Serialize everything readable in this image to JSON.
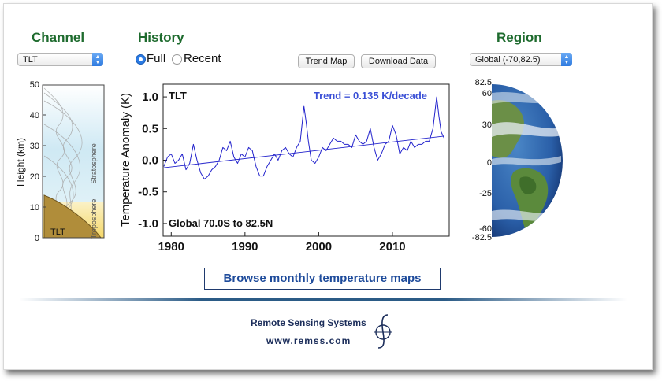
{
  "headings": {
    "channel": "Channel",
    "history": "History",
    "region": "Region"
  },
  "channel_select": {
    "value": "TLT"
  },
  "history": {
    "options": [
      {
        "label": "Full",
        "selected": true
      },
      {
        "label": "Recent",
        "selected": false
      }
    ]
  },
  "buttons": {
    "trend_map": "Trend Map",
    "download_data": "Download Data"
  },
  "region_select": {
    "value": "Global (-70,82.5)"
  },
  "atmosphere": {
    "ylabel": "Height  (km)",
    "ticks": [
      "0",
      "10",
      "20",
      "30",
      "40",
      "50"
    ],
    "layers": {
      "stratosphere": "Stratosphere",
      "troposphere": "Troposphere"
    },
    "channel_label": "TLT",
    "colors": {
      "stratosphere": "#d4ecf5",
      "troposphere": "#f7e6a0",
      "weighting": "#b08d3a"
    }
  },
  "chart_data": {
    "type": "line",
    "title": "",
    "corner_label": "TLT",
    "trend_text": "Trend =  0.135 K/decade",
    "region_text": "Global  70.0S to  82.5N",
    "xlabel": "",
    "ylabel": "Temperature Anomaly (K)",
    "xlim": [
      1978.9,
      2017.7
    ],
    "ylim": [
      -1.2,
      1.2
    ],
    "x_ticks": [
      "1980",
      "1990",
      "2000",
      "2010"
    ],
    "y_ticks": [
      "1.0",
      "0.5",
      "0.0",
      "-0.5",
      "-1.0"
    ],
    "series": [
      {
        "color": "#2222cc",
        "x": [
          1979.0,
          1979.5,
          1980.0,
          1980.5,
          1981.0,
          1981.5,
          1982.0,
          1982.5,
          1983.0,
          1983.5,
          1984.0,
          1984.5,
          1985.0,
          1985.5,
          1986.0,
          1986.5,
          1987.0,
          1987.5,
          1988.0,
          1988.5,
          1989.0,
          1989.5,
          1990.0,
          1990.5,
          1991.0,
          1991.5,
          1992.0,
          1992.5,
          1993.0,
          1993.5,
          1994.0,
          1994.5,
          1995.0,
          1995.5,
          1996.0,
          1996.5,
          1997.0,
          1997.5,
          1998.0,
          1998.3,
          1998.6,
          1999.0,
          1999.5,
          2000.0,
          2000.5,
          2001.0,
          2001.5,
          2002.0,
          2002.5,
          2003.0,
          2003.5,
          2004.0,
          2004.5,
          2005.0,
          2005.5,
          2006.0,
          2006.5,
          2007.0,
          2007.5,
          2008.0,
          2008.5,
          2009.0,
          2009.5,
          2010.0,
          2010.5,
          2011.0,
          2011.5,
          2012.0,
          2012.5,
          2013.0,
          2013.5,
          2014.0,
          2014.5,
          2015.0,
          2015.5,
          2016.0,
          2016.3,
          2016.6,
          2017.0
        ],
        "y": [
          -0.1,
          0.05,
          0.1,
          -0.05,
          0.0,
          0.1,
          -0.15,
          -0.05,
          0.25,
          0.0,
          -0.2,
          -0.3,
          -0.25,
          -0.15,
          -0.1,
          0.0,
          0.2,
          0.15,
          0.3,
          0.05,
          -0.05,
          0.1,
          0.05,
          0.2,
          0.15,
          -0.1,
          -0.25,
          -0.25,
          -0.1,
          0.0,
          0.1,
          0.0,
          0.15,
          0.2,
          0.1,
          0.05,
          0.2,
          0.3,
          0.85,
          0.6,
          0.3,
          0.0,
          -0.05,
          0.05,
          0.2,
          0.15,
          0.25,
          0.35,
          0.3,
          0.3,
          0.25,
          0.25,
          0.2,
          0.4,
          0.3,
          0.25,
          0.3,
          0.5,
          0.2,
          0.0,
          0.1,
          0.25,
          0.3,
          0.55,
          0.4,
          0.1,
          0.2,
          0.15,
          0.3,
          0.2,
          0.25,
          0.25,
          0.3,
          0.3,
          0.5,
          1.0,
          0.7,
          0.45,
          0.35
        ]
      },
      {
        "name": "",
        "color": "#2222cc",
        "x": [
          1979.0,
          2017.0
        ],
        "y": [
          -0.12,
          0.38
        ]
      }
    ]
  },
  "globe": {
    "ticks": [
      "82.5",
      "60",
      "30",
      "0",
      "-25",
      "-60",
      "-82.5"
    ],
    "colors": {
      "ocean": "#2a5fa8",
      "land": "#5b8a3c",
      "cloud": "#e8eef4"
    }
  },
  "browse_link": "Browse monthly temperature maps",
  "footer": {
    "name": "Remote Sensing Systems",
    "url": "www.remss.com"
  }
}
